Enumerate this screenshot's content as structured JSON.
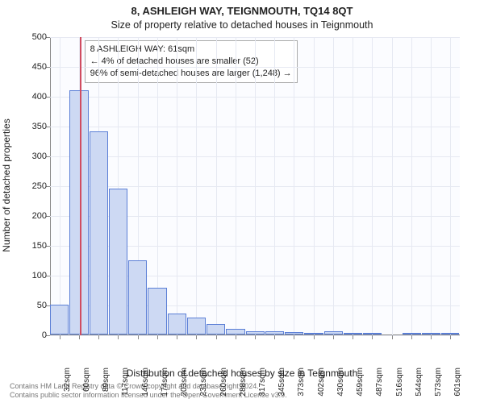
{
  "title": "8, ASHLEIGH WAY, TEIGNMOUTH, TQ14 8QT",
  "subtitle": "Size of property relative to detached houses in Teignmouth",
  "chart": {
    "type": "histogram",
    "background_color": "#fbfcff",
    "grid_color": "#e6e9f2",
    "axis_color": "#888888",
    "bar_fill": "#cdd9f3",
    "bar_stroke": "#5b7fd6",
    "marker_color": "#d04c60",
    "marker_x": 61,
    "xlabel": "Distribution of detached houses by size in Teignmouth",
    "ylabel": "Number of detached properties",
    "xlim": [
      18,
      615
    ],
    "ylim": [
      0,
      500
    ],
    "ytick_step": 50,
    "xticks": [
      32,
      60,
      89,
      117,
      146,
      174,
      203,
      231,
      260,
      288,
      317,
      345,
      373,
      402,
      430,
      459,
      487,
      516,
      544,
      573,
      601
    ],
    "xtick_suffix": "sqm",
    "yticks": [
      0,
      50,
      100,
      150,
      200,
      250,
      300,
      350,
      400,
      450,
      500
    ],
    "bars": [
      {
        "x0": 18,
        "x1": 46.5,
        "y": 50
      },
      {
        "x0": 46.5,
        "x1": 75,
        "y": 410
      },
      {
        "x0": 75,
        "x1": 103.5,
        "y": 340
      },
      {
        "x0": 103.5,
        "x1": 132,
        "y": 245
      },
      {
        "x0": 132,
        "x1": 160.5,
        "y": 125
      },
      {
        "x0": 160.5,
        "x1": 189,
        "y": 78
      },
      {
        "x0": 189,
        "x1": 217.5,
        "y": 35
      },
      {
        "x0": 217.5,
        "x1": 246,
        "y": 28
      },
      {
        "x0": 246,
        "x1": 274.5,
        "y": 18
      },
      {
        "x0": 274.5,
        "x1": 303,
        "y": 10
      },
      {
        "x0": 303,
        "x1": 331.5,
        "y": 6
      },
      {
        "x0": 331.5,
        "x1": 360,
        "y": 5
      },
      {
        "x0": 360,
        "x1": 388.5,
        "y": 4
      },
      {
        "x0": 388.5,
        "x1": 417,
        "y": 3
      },
      {
        "x0": 417,
        "x1": 445.5,
        "y": 6
      },
      {
        "x0": 445.5,
        "x1": 474,
        "y": 3
      },
      {
        "x0": 474,
        "x1": 502.5,
        "y": 2
      },
      {
        "x0": 502.5,
        "x1": 531,
        "y": 0
      },
      {
        "x0": 531,
        "x1": 559.5,
        "y": 1
      },
      {
        "x0": 559.5,
        "x1": 588,
        "y": 1
      },
      {
        "x0": 588,
        "x1": 615,
        "y": 1
      }
    ],
    "annotation": {
      "line1": "8 ASHLEIGH WAY: 61sqm",
      "line2": "← 4% of detached houses are smaller (52)",
      "line3": "96% of semi-detached houses are larger (1,248) →"
    },
    "label_fontsize": 12,
    "tick_fontsize": 10
  },
  "footer": {
    "line1": "Contains HM Land Registry data © Crown copyright and database right 2024.",
    "line2": "Contains public sector information licensed under the Open Government Licence v3.0."
  }
}
